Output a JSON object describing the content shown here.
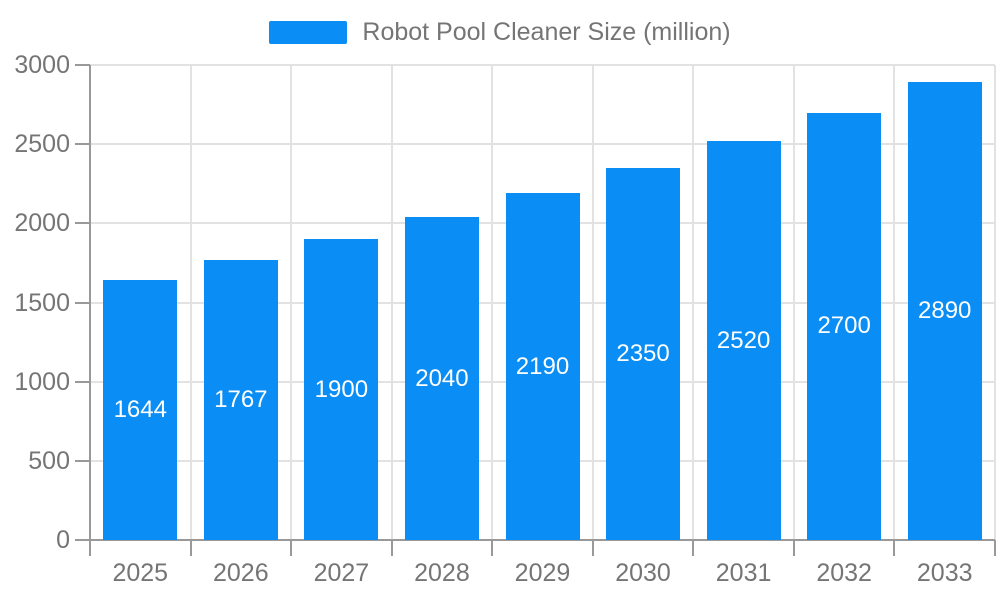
{
  "legend": {
    "label": "Robot Pool Cleaner Size (million)",
    "swatch_color": "#0a8df5"
  },
  "chart_data": {
    "type": "bar",
    "title": "Robot Pool Cleaner Size (million)",
    "series_name": "Robot Pool Cleaner Size (million)",
    "categories": [
      "2025",
      "2026",
      "2027",
      "2028",
      "2029",
      "2030",
      "2031",
      "2032",
      "2033"
    ],
    "values": [
      1644,
      1767,
      1900,
      2040,
      2190,
      2350,
      2520,
      2700,
      2890
    ],
    "xlabel": "",
    "ylabel": "",
    "ylim": [
      0,
      3000
    ],
    "yticks": [
      0,
      500,
      1000,
      1500,
      2000,
      2500,
      3000
    ],
    "grid": true,
    "legend_position": "top-center",
    "bar_color": "#0a8df5",
    "bar_label_color": "#ffffff",
    "axis_label_color": "#757575",
    "axis_line_color": "#999999",
    "gridline_color": "#e2e2e2",
    "background_color": "#ffffff"
  }
}
